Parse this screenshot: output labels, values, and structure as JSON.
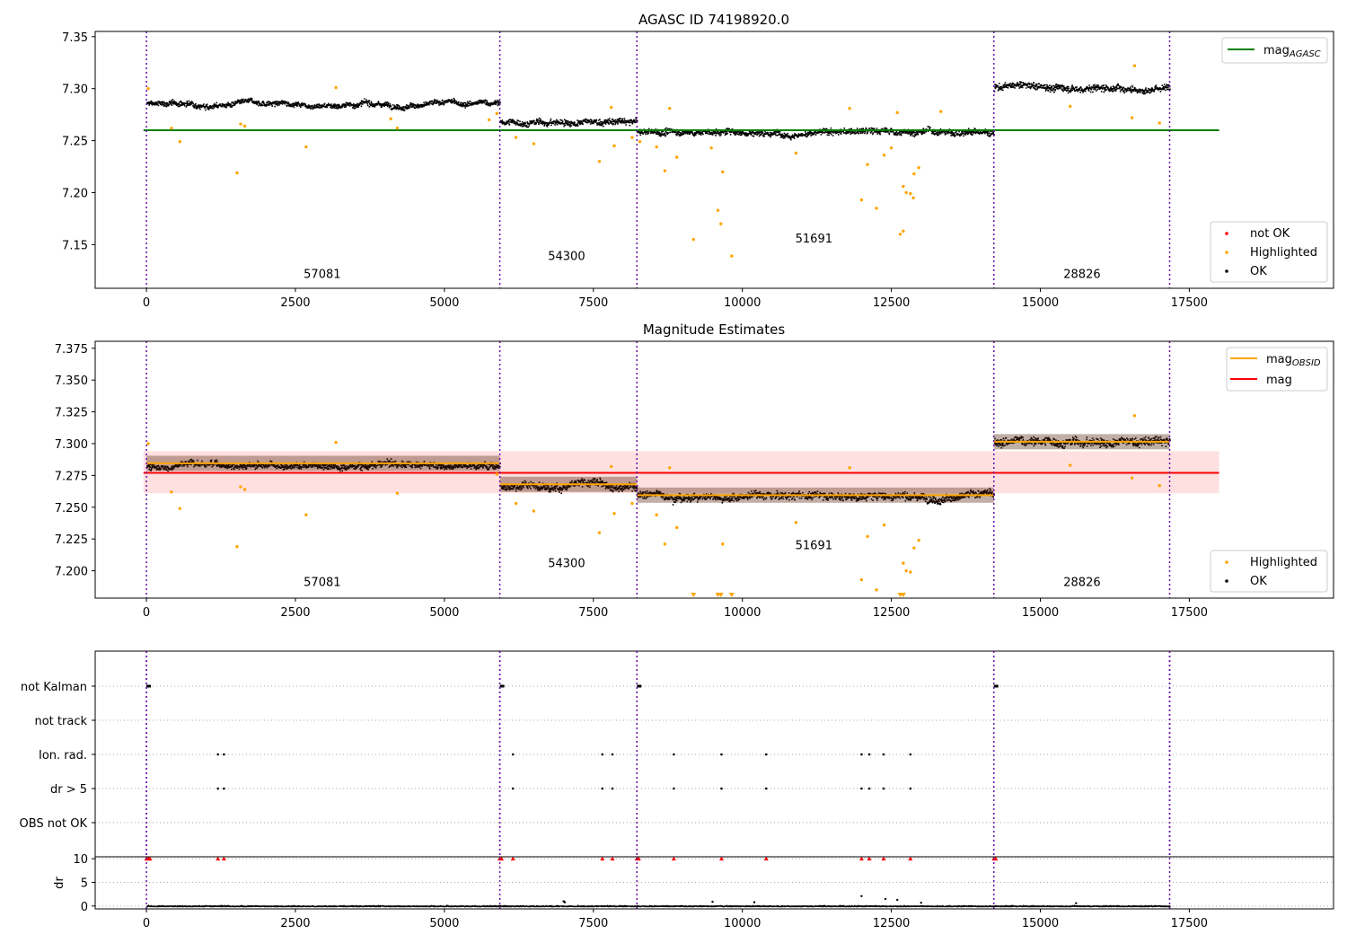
{
  "chart_data": [
    {
      "type": "scatter",
      "title": "AGASC ID 74198920.0",
      "xlim": [
        -860,
        19920
      ],
      "ylim": [
        7.108,
        7.355
      ],
      "xticks": [
        "0",
        "2500",
        "5000",
        "7500",
        "10000",
        "12500",
        "15000",
        "17500"
      ],
      "yticks": [
        "7.15",
        "7.20",
        "7.25",
        "7.30",
        "7.35"
      ],
      "obsid_boundaries": [
        0,
        5930,
        8230,
        14220,
        17170
      ],
      "segments": [
        {
          "label": "57081",
          "x_start": 0,
          "x_end": 5930,
          "mag_mean": 7.286,
          "band": 0.005,
          "label_x": 2950,
          "label_y": 7.118
        },
        {
          "label": "54300",
          "x_start": 5930,
          "x_end": 8230,
          "mag_mean": 7.268,
          "band": 0.006,
          "label_x": 7050,
          "label_y": 7.135
        },
        {
          "label": "51691",
          "x_start": 8230,
          "x_end": 14220,
          "mag_mean": 7.259,
          "band": 0.006,
          "label_x": 11200,
          "label_y": 7.152
        },
        {
          "label": "28826",
          "x_start": 14220,
          "x_end": 17170,
          "mag_mean": 7.302,
          "band": 0.007,
          "label_x": 15700,
          "label_y": 7.118
        }
      ],
      "horizontal_lines": [
        {
          "name": "mag_AGASC",
          "y": 7.26,
          "x_start": -50,
          "x_end": 18000,
          "color": "#008000"
        }
      ],
      "highlighted_points": [
        [
          30,
          7.3
        ],
        [
          420,
          7.262
        ],
        [
          560,
          7.249
        ],
        [
          1520,
          7.219
        ],
        [
          1580,
          7.266
        ],
        [
          1650,
          7.264
        ],
        [
          2680,
          7.244
        ],
        [
          3180,
          7.301
        ],
        [
          4210,
          7.262
        ],
        [
          4100,
          7.271
        ],
        [
          5750,
          7.27
        ],
        [
          5880,
          7.276
        ],
        [
          6200,
          7.253
        ],
        [
          6500,
          7.247
        ],
        [
          7600,
          7.23
        ],
        [
          7800,
          7.282
        ],
        [
          7850,
          7.245
        ],
        [
          8150,
          7.253
        ],
        [
          8280,
          7.249
        ],
        [
          8560,
          7.244
        ],
        [
          8700,
          7.221
        ],
        [
          8780,
          7.281
        ],
        [
          8900,
          7.234
        ],
        [
          9180,
          7.155
        ],
        [
          9480,
          7.243
        ],
        [
          9590,
          7.183
        ],
        [
          9640,
          7.17
        ],
        [
          9670,
          7.22
        ],
        [
          9820,
          7.139
        ],
        [
          10900,
          7.238
        ],
        [
          11800,
          7.281
        ],
        [
          12000,
          7.193
        ],
        [
          12100,
          7.227
        ],
        [
          12250,
          7.185
        ],
        [
          12380,
          7.236
        ],
        [
          12500,
          7.243
        ],
        [
          12600,
          7.277
        ],
        [
          12650,
          7.16
        ],
        [
          12700,
          7.163
        ],
        [
          12700,
          7.206
        ],
        [
          12750,
          7.2
        ],
        [
          12820,
          7.199
        ],
        [
          12870,
          7.195
        ],
        [
          12880,
          7.218
        ],
        [
          12960,
          7.224
        ],
        [
          13330,
          7.278
        ],
        [
          15500,
          7.283
        ],
        [
          16540,
          7.272
        ],
        [
          16580,
          7.322
        ],
        [
          17000,
          7.267
        ]
      ],
      "legends": [
        {
          "position": "top-right",
          "entries": [
            {
              "label": "mag",
              "sub": "AGASC",
              "color": "#008000",
              "kind": "line"
            }
          ]
        },
        {
          "position": "lower-right",
          "entries": [
            {
              "label": "not OK",
              "color": "#ff0000",
              "kind": "dot"
            },
            {
              "label": "Highlighted",
              "color": "#ffa500",
              "kind": "dot"
            },
            {
              "label": "OK",
              "color": "#000000",
              "kind": "dot"
            }
          ]
        }
      ]
    },
    {
      "type": "scatter",
      "title": "Magnitude Estimates",
      "xlim": [
        -860,
        19920
      ],
      "ylim": [
        7.1785,
        7.3805
      ],
      "xticks": [
        "0",
        "2500",
        "5000",
        "7500",
        "10000",
        "12500",
        "15000",
        "17500"
      ],
      "yticks": [
        "7.200",
        "7.225",
        "7.250",
        "7.275",
        "7.300",
        "7.325",
        "7.350",
        "7.375"
      ],
      "obsid_boundaries": [
        0,
        5930,
        8230,
        14220,
        17170
      ],
      "segments": [
        {
          "label": "57081",
          "x_start": 0,
          "x_end": 5930,
          "mag_obsid": 7.2845,
          "label_x": 2950,
          "label_y": 7.188
        },
        {
          "label": "54300",
          "x_start": 5930,
          "x_end": 8230,
          "mag_obsid": 7.268,
          "label_x": 7050,
          "label_y": 7.203
        },
        {
          "label": "51691",
          "x_start": 8230,
          "x_end": 14220,
          "mag_obsid": 7.2595,
          "label_x": 11200,
          "label_y": 7.217
        },
        {
          "label": "28826",
          "x_start": 14220,
          "x_end": 17170,
          "mag_obsid": 7.3015,
          "label_x": 15700,
          "label_y": 7.188
        }
      ],
      "mag": 7.277,
      "mag_band": [
        7.261,
        7.294
      ],
      "mag_x_range": [
        -50,
        18000
      ],
      "highlighted_points": [
        [
          30,
          7.3
        ],
        [
          420,
          7.262
        ],
        [
          560,
          7.249
        ],
        [
          1520,
          7.219
        ],
        [
          1580,
          7.266
        ],
        [
          1650,
          7.264
        ],
        [
          2680,
          7.244
        ],
        [
          3180,
          7.301
        ],
        [
          4210,
          7.261
        ],
        [
          5880,
          7.276
        ],
        [
          6200,
          7.253
        ],
        [
          6500,
          7.247
        ],
        [
          7600,
          7.23
        ],
        [
          7800,
          7.282
        ],
        [
          7850,
          7.245
        ],
        [
          8150,
          7.253
        ],
        [
          8560,
          7.244
        ],
        [
          8700,
          7.221
        ],
        [
          8780,
          7.281
        ],
        [
          8900,
          7.234
        ],
        [
          9670,
          7.221
        ],
        [
          10900,
          7.238
        ],
        [
          11800,
          7.281
        ],
        [
          12000,
          7.193
        ],
        [
          12100,
          7.227
        ],
        [
          12250,
          7.185
        ],
        [
          12380,
          7.236
        ],
        [
          12700,
          7.206
        ],
        [
          12750,
          7.2
        ],
        [
          12820,
          7.199
        ],
        [
          12880,
          7.218
        ],
        [
          12960,
          7.224
        ],
        [
          15500,
          7.283
        ],
        [
          16540,
          7.273
        ],
        [
          16580,
          7.322
        ],
        [
          17000,
          7.267
        ]
      ],
      "clipped_points_x": [
        9180,
        9590,
        9640,
        9820,
        12650,
        12700
      ],
      "legends": [
        {
          "position": "top-right",
          "entries": [
            {
              "label": "mag",
              "sub": "OBSID",
              "color": "#ffa500",
              "kind": "line"
            },
            {
              "label": "mag",
              "sub": "",
              "color": "#ff0000",
              "kind": "line"
            }
          ]
        },
        {
          "position": "lower-right",
          "entries": [
            {
              "label": "Highlighted",
              "color": "#ffa500",
              "kind": "dot"
            },
            {
              "label": "OK",
              "color": "#000000",
              "kind": "dot"
            }
          ]
        }
      ]
    },
    {
      "type": "scatter",
      "xlim": [
        -860,
        19920
      ],
      "categories": [
        "not Kalman",
        "not track",
        "Ion. rad.",
        "dr > 5",
        "OBS not OK"
      ],
      "obsid_boundaries": [
        0,
        5930,
        8230,
        14220,
        17170
      ],
      "flags": {
        "not Kalman": [
          0,
          5930,
          8230,
          14220
        ],
        "not track": [],
        "Ion. rad.": [
          1200,
          1300,
          6150,
          7650,
          7820,
          8850,
          9650,
          10400,
          12000,
          12130,
          12370,
          12820
        ],
        "dr > 5": [
          1200,
          1300,
          6150,
          7650,
          7820,
          8850,
          9650,
          10400,
          12000,
          12130,
          12370,
          12820
        ],
        "OBS not OK": []
      }
    },
    {
      "type": "scatter",
      "ylabel": "dr",
      "xlim": [
        -860,
        19920
      ],
      "ylim": [
        -0.6,
        10.4
      ],
      "xticks": [
        "0",
        "2500",
        "5000",
        "7500",
        "10000",
        "12500",
        "15000",
        "17500"
      ],
      "yticks": [
        "0",
        "5",
        "10"
      ],
      "obsid_boundaries": [
        0,
        5930,
        8230,
        14220,
        17170
      ],
      "capped_points_x": [
        0,
        30,
        60,
        1200,
        1300,
        5930,
        5960,
        6150,
        7650,
        7820,
        8230,
        8260,
        8850,
        9650,
        10400,
        12000,
        12130,
        12370,
        12820,
        14220,
        14250
      ],
      "cap_value": 10,
      "outliers": [
        [
          7000,
          1.0
        ],
        [
          7020,
          0.8
        ],
        [
          9500,
          0.9
        ],
        [
          10200,
          0.8
        ],
        [
          12000,
          2.1
        ],
        [
          12400,
          1.5
        ],
        [
          12600,
          1.3
        ],
        [
          13000,
          0.7
        ],
        [
          15600,
          0.6
        ]
      ]
    }
  ]
}
